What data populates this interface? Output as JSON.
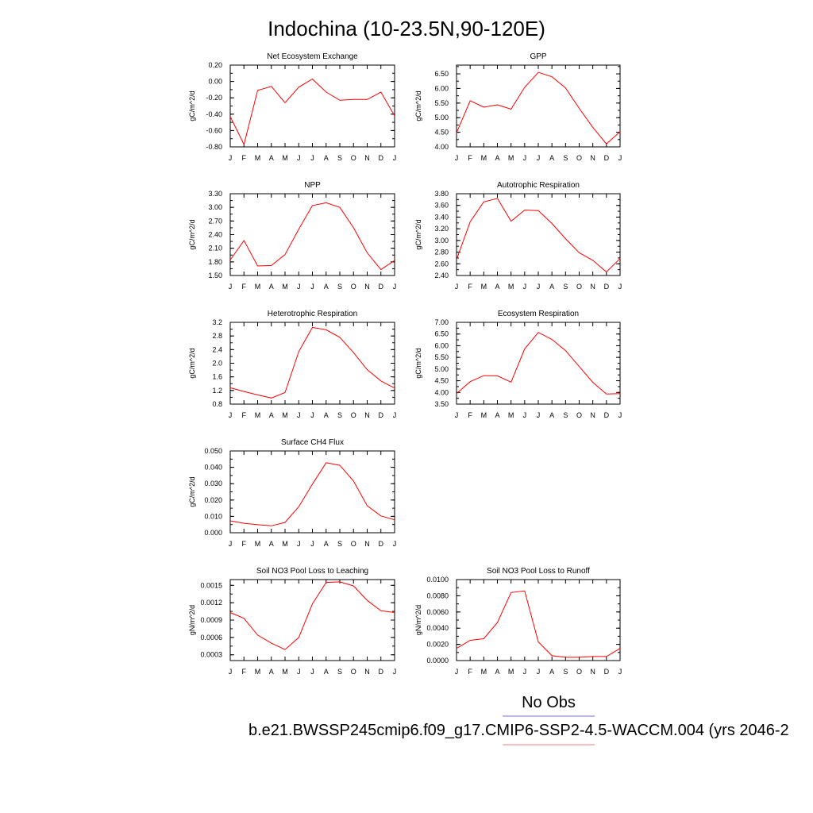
{
  "title": "Indochina (10-23.5N,90-120E)",
  "legend": {
    "entries": [
      {
        "label": "No Obs",
        "color": "#6f6fe8"
      },
      {
        "label": "b.e21.BWSSP245cmip6.f09_g17.CMIP6-SSP2-4.5-WACCM.004 (yrs 2046-2",
        "color": "#f07f7f"
      }
    ]
  },
  "colors": {
    "series": "#ff0000"
  },
  "chart_data": [
    {
      "type": "line",
      "title": "Net Ecosystem Exchange",
      "ylabel": "gC/m^2/d",
      "x": [
        "J",
        "F",
        "M",
        "A",
        "M",
        "J",
        "J",
        "A",
        "S",
        "O",
        "N",
        "D",
        "J"
      ],
      "yticks": [
        "0.20",
        "0.00",
        "-0.20",
        "-0.40",
        "-0.60",
        "-0.80"
      ],
      "ylim": [
        -0.8,
        0.2
      ],
      "values": [
        -0.43,
        -0.77,
        -0.11,
        -0.06,
        -0.26,
        -0.07,
        0.03,
        -0.13,
        -0.23,
        -0.22,
        -0.22,
        -0.13,
        -0.42
      ]
    },
    {
      "type": "line",
      "title": "GPP",
      "ylabel": "gC/m^2/d",
      "x": [
        "J",
        "F",
        "M",
        "A",
        "M",
        "J",
        "J",
        "A",
        "S",
        "O",
        "N",
        "D",
        "J"
      ],
      "yticks": [
        "6.50",
        "6.00",
        "5.50",
        "5.00",
        "4.50",
        "4.00"
      ],
      "ylim": [
        4.0,
        6.8
      ],
      "values": [
        4.48,
        5.58,
        5.36,
        5.44,
        5.29,
        6.04,
        6.55,
        6.4,
        6.02,
        5.32,
        4.67,
        4.1,
        4.52
      ]
    },
    {
      "type": "line",
      "title": "NPP",
      "ylabel": "gC/m^2/d",
      "x": [
        "J",
        "F",
        "M",
        "A",
        "M",
        "J",
        "J",
        "A",
        "S",
        "O",
        "N",
        "D",
        "J"
      ],
      "yticks": [
        "3.30",
        "3.00",
        "2.70",
        "2.40",
        "2.10",
        "1.80",
        "1.50"
      ],
      "ylim": [
        1.5,
        3.3
      ],
      "values": [
        1.84,
        2.27,
        1.71,
        1.72,
        1.96,
        2.52,
        3.04,
        3.1,
        3.0,
        2.55,
        2.0,
        1.63,
        1.83
      ]
    },
    {
      "type": "line",
      "title": "Autotrophic Respiration",
      "ylabel": "gC/m^2/d",
      "x": [
        "J",
        "F",
        "M",
        "A",
        "M",
        "J",
        "J",
        "A",
        "S",
        "O",
        "N",
        "D",
        "J"
      ],
      "yticks": [
        "3.80",
        "3.60",
        "3.40",
        "3.20",
        "3.00",
        "2.80",
        "2.60",
        "2.40"
      ],
      "ylim": [
        2.4,
        3.8
      ],
      "values": [
        2.67,
        3.32,
        3.66,
        3.72,
        3.33,
        3.52,
        3.51,
        3.29,
        3.03,
        2.79,
        2.66,
        2.46,
        2.69
      ]
    },
    {
      "type": "line",
      "title": "Heterotrophic Respiration",
      "ylabel": "gC/m^2/d",
      "x": [
        "J",
        "F",
        "M",
        "A",
        "M",
        "J",
        "J",
        "A",
        "S",
        "O",
        "N",
        "D",
        "J"
      ],
      "yticks": [
        "3.2",
        "2.8",
        "2.4",
        "2.0",
        "1.6",
        "1.2",
        "0.8"
      ],
      "ylim": [
        0.8,
        3.2
      ],
      "values": [
        1.28,
        1.17,
        1.07,
        0.98,
        1.14,
        2.34,
        3.05,
        2.98,
        2.76,
        2.31,
        1.81,
        1.48,
        1.27
      ]
    },
    {
      "type": "line",
      "title": "Ecosystem Respiration",
      "ylabel": "gC/m^2/d",
      "x": [
        "J",
        "F",
        "M",
        "A",
        "M",
        "J",
        "J",
        "A",
        "S",
        "O",
        "N",
        "D",
        "J"
      ],
      "yticks": [
        "7.00",
        "6.50",
        "6.00",
        "5.50",
        "5.00",
        "4.50",
        "4.00",
        "3.50"
      ],
      "ylim": [
        3.5,
        7.0
      ],
      "values": [
        3.95,
        4.46,
        4.72,
        4.71,
        4.44,
        5.86,
        6.57,
        6.27,
        5.79,
        5.11,
        4.43,
        3.93,
        3.95
      ]
    },
    {
      "type": "line",
      "title": "Surface CH4 Flux",
      "ylabel": "gC/m^2/d",
      "x": [
        "J",
        "F",
        "M",
        "A",
        "M",
        "J",
        "J",
        "A",
        "S",
        "O",
        "N",
        "D",
        "J"
      ],
      "yticks": [
        "0.050",
        "0.040",
        "0.030",
        "0.020",
        "0.010",
        "0.000"
      ],
      "ylim": [
        0.0,
        0.05
      ],
      "values": [
        0.0073,
        0.0058,
        0.0049,
        0.0042,
        0.0063,
        0.0159,
        0.0297,
        0.0428,
        0.0412,
        0.0316,
        0.0165,
        0.0103,
        0.0079
      ]
    },
    {
      "type": "line",
      "title": "Soil NO3 Pool Loss to Leaching",
      "ylabel": "gN/m^2/d",
      "x": [
        "J",
        "F",
        "M",
        "A",
        "M",
        "J",
        "J",
        "A",
        "S",
        "O",
        "N",
        "D",
        "J"
      ],
      "yticks": [
        "0.0015",
        "0.0012",
        "0.0009",
        "0.0006",
        "0.0003"
      ],
      "ylim": [
        0.0002,
        0.0016
      ],
      "values": [
        0.00103,
        0.00093,
        0.00064,
        0.0005,
        0.00039,
        0.0006,
        0.00118,
        0.00155,
        0.00156,
        0.00149,
        0.00124,
        0.00106,
        0.00103
      ]
    },
    {
      "type": "line",
      "title": "Soil NO3 Pool Loss to Runoff",
      "ylabel": "gN/m^2/d",
      "x": [
        "J",
        "F",
        "M",
        "A",
        "M",
        "J",
        "J",
        "A",
        "S",
        "O",
        "N",
        "D",
        "J"
      ],
      "yticks": [
        "0.0100",
        "0.0080",
        "0.0060",
        "0.0040",
        "0.0020",
        "0.0000"
      ],
      "ylim": [
        0.0,
        0.01
      ],
      "values": [
        0.0015,
        0.0025,
        0.0027,
        0.0047,
        0.0084,
        0.0086,
        0.0023,
        0.0006,
        0.0004,
        0.0004,
        0.0005,
        0.0005,
        0.0015
      ]
    }
  ]
}
